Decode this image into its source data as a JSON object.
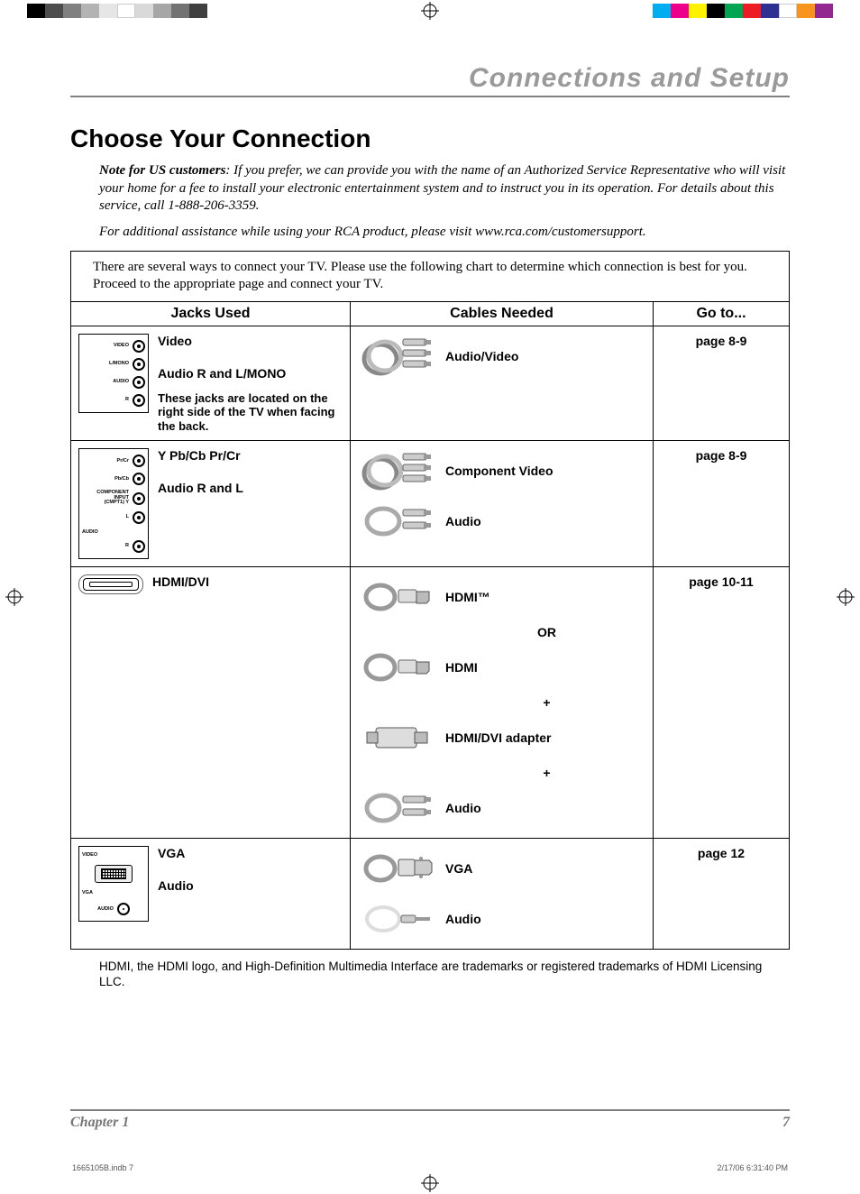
{
  "colorbar_left": [
    "#000000",
    "#4d4d4d",
    "#808080",
    "#b3b3b3",
    "#e6e6e6",
    "#ffffff",
    "#d9d9d9",
    "#a6a6a6",
    "#737373",
    "#404040"
  ],
  "colorbar_right": [
    "#00aeef",
    "#ec008c",
    "#fff200",
    "#000000",
    "#00a651",
    "#ed1c24",
    "#2e3192",
    "#ffffff",
    "#f7941d",
    "#92278f"
  ],
  "header": {
    "chapter_title": "Connections and Setup"
  },
  "section": {
    "title": "Choose Your Connection",
    "note_lead": "Note for US customers",
    "note_body": ": If you prefer, we can provide you with the name of an Authorized Service Representative who will visit your home for a fee to install your electronic entertainment system and to instruct you in its operation. For details about this service, call 1-888-206-3359.",
    "assist": "For additional assistance while using your RCA product, please visit www.rca.com/customersupport."
  },
  "chart": {
    "intro": "There are several ways to connect your TV. Please use the following chart to determine which connection is best for you. Proceed to the appropriate page and connect your TV.",
    "columns": [
      "Jacks Used",
      "Cables Needed",
      "Go to..."
    ],
    "rows": [
      {
        "jack_labels": [
          "VIDEO",
          "L/MONO",
          "AUDIO",
          "R"
        ],
        "jack_text": [
          "Video",
          "Audio R and L/MONO"
        ],
        "jack_sub": "These jacks are located on the right side of the TV when facing the back.",
        "cables": [
          {
            "label": "Audio/Video",
            "type": "av"
          }
        ],
        "goto": "page 8-9"
      },
      {
        "jack_labels": [
          "Pr/Cr",
          "Pb/Cb",
          "COMPONENT INPUT (CMPT1) Y",
          "L",
          "AUDIO",
          "R"
        ],
        "jack_text": [
          "Y Pb/Cb Pr/Cr",
          "Audio R and L"
        ],
        "cables": [
          {
            "label": "Component Video",
            "type": "component"
          },
          {
            "label": "Audio",
            "type": "audio2"
          }
        ],
        "goto": "page 8-9"
      },
      {
        "jack_type": "hdmi",
        "jack_text": [
          "HDMI/DVI"
        ],
        "cables": [
          {
            "label": "HDMI™",
            "type": "hdmi"
          },
          {
            "sep": "OR"
          },
          {
            "label": "HDMI",
            "type": "hdmi"
          },
          {
            "sep": "+"
          },
          {
            "label": "HDMI/DVI adapter",
            "type": "adapter"
          },
          {
            "sep": "+"
          },
          {
            "label": "Audio",
            "type": "audio2"
          }
        ],
        "goto": "page 10-11"
      },
      {
        "jack_type": "vga",
        "jack_labels": [
          "VIDEO",
          "VGA",
          "AUDIO"
        ],
        "jack_text": [
          "VGA",
          "Audio"
        ],
        "cables": [
          {
            "label": "VGA",
            "type": "vga"
          },
          {
            "label": "Audio",
            "type": "minijack"
          }
        ],
        "goto": "page 12"
      }
    ]
  },
  "footnote": "HDMI, the HDMI logo, and High-Definition Multimedia Interface are trademarks or registered trademarks of HDMI Licensing LLC.",
  "footer": {
    "chapter": "Chapter 1",
    "page": "7"
  },
  "print": {
    "file": "1665105B.indb   7",
    "stamp": "2/17/06   6:31:40 PM"
  }
}
